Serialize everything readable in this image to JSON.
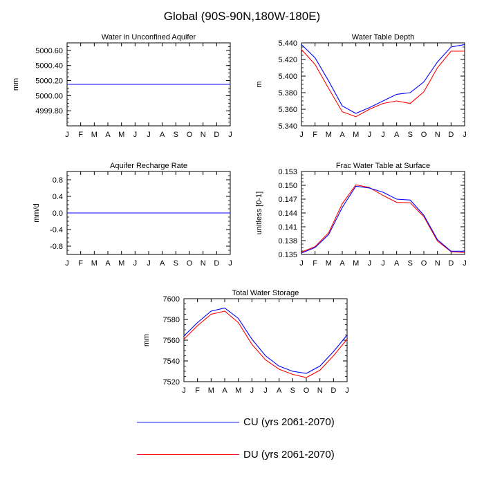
{
  "title": "Global (90S-90N,180W-180E)",
  "legend": [
    {
      "label": "CU (yrs 2061-2070)",
      "color": "#0000ff"
    },
    {
      "label": "DU (yrs 2061-2070)",
      "color": "#ff0000"
    }
  ],
  "chart_data": [
    {
      "type": "line",
      "title": "Water in Unconfined Aquifer",
      "ylabel": "mm",
      "categories": [
        "J",
        "F",
        "M",
        "A",
        "M",
        "J",
        "J",
        "A",
        "S",
        "O",
        "N",
        "D",
        "J"
      ],
      "ylim": [
        4999.6,
        5000.7
      ],
      "yticks": [
        4999.8,
        5000.0,
        5000.2,
        5000.4,
        5000.6
      ],
      "yticklabels": [
        "4999.80",
        "5000.00",
        "5000.20",
        "5000.40",
        "5000.60"
      ],
      "series": [
        {
          "name": "CU (yrs 2061-2070)",
          "color": "#0000ff",
          "values": [
            5000.15,
            5000.15,
            5000.15,
            5000.15,
            5000.15,
            5000.15,
            5000.15,
            5000.15,
            5000.15,
            5000.15,
            5000.15,
            5000.15,
            5000.15
          ]
        },
        {
          "name": "DU (yrs 2061-2070)",
          "color": "#ff0000",
          "values": [
            5000.15,
            5000.15,
            5000.15,
            5000.15,
            5000.15,
            5000.15,
            5000.15,
            5000.15,
            5000.15,
            5000.15,
            5000.15,
            5000.15,
            5000.15
          ]
        }
      ]
    },
    {
      "type": "line",
      "title": "Water Table Depth",
      "ylabel": "m",
      "categories": [
        "J",
        "F",
        "M",
        "A",
        "M",
        "J",
        "J",
        "A",
        "S",
        "O",
        "N",
        "D",
        "J"
      ],
      "ylim": [
        5.34,
        5.44
      ],
      "yticks": [
        5.34,
        5.36,
        5.38,
        5.4,
        5.42,
        5.44
      ],
      "yticklabels": [
        "5.340",
        "5.360",
        "5.380",
        "5.400",
        "5.420",
        "5.440"
      ],
      "series": [
        {
          "name": "CU (yrs 2061-2070)",
          "color": "#0000ff",
          "values": [
            5.438,
            5.422,
            5.394,
            5.364,
            5.355,
            5.362,
            5.37,
            5.378,
            5.38,
            5.393,
            5.417,
            5.435,
            5.438
          ]
        },
        {
          "name": "DU (yrs 2061-2070)",
          "color": "#ff0000",
          "values": [
            5.432,
            5.414,
            5.385,
            5.357,
            5.351,
            5.36,
            5.367,
            5.37,
            5.367,
            5.381,
            5.41,
            5.43,
            5.43
          ]
        }
      ]
    },
    {
      "type": "line",
      "title": "Aquifer Recharge Rate",
      "ylabel": "mm/d",
      "categories": [
        "J",
        "F",
        "M",
        "A",
        "M",
        "J",
        "J",
        "A",
        "S",
        "O",
        "N",
        "D",
        "J"
      ],
      "ylim": [
        -1.0,
        1.0
      ],
      "yticks": [
        -0.8,
        -0.4,
        0.0,
        0.4,
        0.8
      ],
      "yticklabels": [
        "-0.8",
        "-0.4",
        "0.0",
        "0.4",
        "0.8"
      ],
      "series": [
        {
          "name": "CU (yrs 2061-2070)",
          "color": "#0000ff",
          "values": [
            0,
            0,
            0,
            0,
            0,
            0,
            0,
            0,
            0,
            0,
            0,
            0,
            0
          ]
        },
        {
          "name": "DU (yrs 2061-2070)",
          "color": "#ff0000",
          "values": [
            0,
            0,
            0,
            0,
            0,
            0,
            0,
            0,
            0,
            0,
            0,
            0,
            0
          ]
        }
      ]
    },
    {
      "type": "line",
      "title": "Frac Water Table at Surface",
      "ylabel": "unitless [0-1]",
      "categories": [
        "J",
        "F",
        "M",
        "A",
        "M",
        "J",
        "J",
        "A",
        "S",
        "O",
        "N",
        "D",
        "J"
      ],
      "ylim": [
        0.135,
        0.153
      ],
      "yticks": [
        0.135,
        0.138,
        0.141,
        0.144,
        0.147,
        0.15,
        0.153
      ],
      "yticklabels": [
        "0.135",
        "0.138",
        "0.141",
        "0.144",
        "0.147",
        "0.150",
        "0.153"
      ],
      "series": [
        {
          "name": "CU (yrs 2061-2070)",
          "color": "#0000ff",
          "values": [
            0.1353,
            0.1365,
            0.1393,
            0.1452,
            0.1498,
            0.1494,
            0.1485,
            0.147,
            0.1468,
            0.1435,
            0.1382,
            0.1357,
            0.1357
          ]
        },
        {
          "name": "DU (yrs 2061-2070)",
          "color": "#ff0000",
          "values": [
            0.1355,
            0.1367,
            0.1397,
            0.146,
            0.1501,
            0.1495,
            0.1478,
            0.1463,
            0.1462,
            0.1432,
            0.1379,
            0.1356,
            0.1354
          ]
        }
      ]
    },
    {
      "type": "line",
      "title": "Total Water Storage",
      "ylabel": "mm",
      "categories": [
        "J",
        "F",
        "M",
        "A",
        "M",
        "J",
        "J",
        "A",
        "S",
        "O",
        "N",
        "D",
        "J"
      ],
      "ylim": [
        7520,
        7600
      ],
      "yticks": [
        7520,
        7540,
        7560,
        7580,
        7600
      ],
      "yticklabels": [
        "7520",
        "7540",
        "7560",
        "7580",
        "7600"
      ],
      "series": [
        {
          "name": "CU (yrs 2061-2070)",
          "color": "#0000ff",
          "values": [
            7564,
            7577,
            7588,
            7591,
            7581,
            7561,
            7545,
            7535,
            7530,
            7528,
            7535,
            7549,
            7565
          ]
        },
        {
          "name": "DU (yrs 2061-2070)",
          "color": "#ff0000",
          "values": [
            7561,
            7574,
            7585,
            7588,
            7577,
            7556,
            7541,
            7532,
            7527,
            7524,
            7531,
            7545,
            7561
          ]
        }
      ]
    }
  ]
}
